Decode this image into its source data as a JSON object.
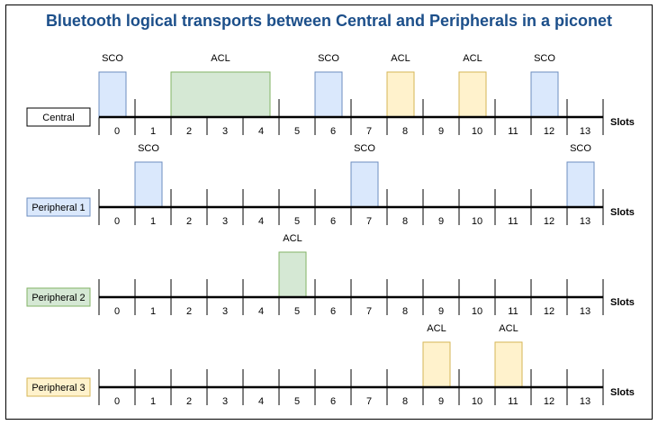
{
  "title": "Bluetooth logical transports between Central and Peripherals in a piconet",
  "axis_label": "Slots",
  "slots": [
    "0",
    "1",
    "2",
    "3",
    "4",
    "5",
    "6",
    "7",
    "8",
    "9",
    "10",
    "11",
    "12",
    "13"
  ],
  "colors": {
    "SCO": {
      "fill": "#dae8fc",
      "stroke": "#6c8ebf"
    },
    "ACL_green": {
      "fill": "#d5e8d4",
      "stroke": "#82b366"
    },
    "ACL_yellow": {
      "fill": "#fff2cc",
      "stroke": "#d6b656"
    },
    "white": {
      "fill": "#ffffff",
      "stroke": "#000000"
    }
  },
  "rows": [
    {
      "label": "Central",
      "style": "white",
      "transmissions": [
        {
          "type": "SCO",
          "slot": 0,
          "span": 1,
          "style": "SCO"
        },
        {
          "type": "ACL",
          "slot": 2,
          "span": 3,
          "style": "ACL_green"
        },
        {
          "type": "SCO",
          "slot": 6,
          "span": 1,
          "style": "SCO"
        },
        {
          "type": "ACL",
          "slot": 8,
          "span": 1,
          "style": "ACL_yellow"
        },
        {
          "type": "ACL",
          "slot": 10,
          "span": 1,
          "style": "ACL_yellow"
        },
        {
          "type": "SCO",
          "slot": 12,
          "span": 1,
          "style": "SCO"
        }
      ]
    },
    {
      "label": "Peripheral 1",
      "style": "SCO",
      "transmissions": [
        {
          "type": "SCO",
          "slot": 1,
          "span": 1,
          "style": "SCO"
        },
        {
          "type": "SCO",
          "slot": 7,
          "span": 1,
          "style": "SCO"
        },
        {
          "type": "SCO",
          "slot": 13,
          "span": 1,
          "style": "SCO"
        }
      ]
    },
    {
      "label": "Peripheral 2",
      "style": "ACL_green",
      "transmissions": [
        {
          "type": "ACL",
          "slot": 5,
          "span": 1,
          "style": "ACL_green"
        }
      ]
    },
    {
      "label": "Peripheral 3",
      "style": "ACL_yellow",
      "transmissions": [
        {
          "type": "ACL",
          "slot": 9,
          "span": 1,
          "style": "ACL_yellow"
        },
        {
          "type": "ACL",
          "slot": 11,
          "span": 1,
          "style": "ACL_yellow"
        }
      ]
    }
  ]
}
